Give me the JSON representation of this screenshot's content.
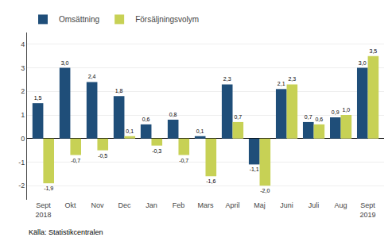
{
  "chart_data": {
    "type": "bar",
    "categories": [
      "Sept\n2018",
      "Okt",
      "Nov",
      "Dec",
      "Jan",
      "Feb",
      "Mars",
      "April",
      "Maj",
      "Juni",
      "Juli",
      "Aug",
      "Sept\n2019"
    ],
    "series": [
      {
        "name": "Omsättning",
        "color": "#1F4E79",
        "values": [
          1.5,
          3.0,
          2.4,
          1.8,
          0.6,
          0.8,
          0.1,
          2.3,
          -1.1,
          2.1,
          0.7,
          0.9,
          3.0
        ],
        "value_labels": [
          "1,5",
          "3,0",
          "2,4",
          "1,8",
          "0,6",
          "0,8",
          "0,1",
          "2,3",
          "-1,1",
          "2,1",
          "0,7",
          "0,9",
          "3,0"
        ]
      },
      {
        "name": "Försäljningsvolym",
        "color": "#C7D155",
        "values": [
          -1.9,
          -0.7,
          -0.5,
          0.1,
          -0.3,
          -0.7,
          -1.6,
          0.7,
          -2.0,
          2.3,
          0.6,
          1.0,
          3.5
        ],
        "value_labels": [
          "-1,9",
          "-0,7",
          "-0,5",
          "0,1",
          "-0,3",
          "-0,7",
          "-1,6",
          "0,7",
          "-2,0",
          "2,3",
          "0,6",
          "1,0",
          "3,5"
        ]
      }
    ],
    "ylim": [
      -2.6,
      4.5
    ],
    "yticks": [
      -2,
      -1,
      0,
      1,
      2,
      3,
      4
    ],
    "grid": true,
    "legend": "upper left",
    "data_labels": true,
    "annotations": [
      "Källa: Statistikcentralen"
    ]
  }
}
